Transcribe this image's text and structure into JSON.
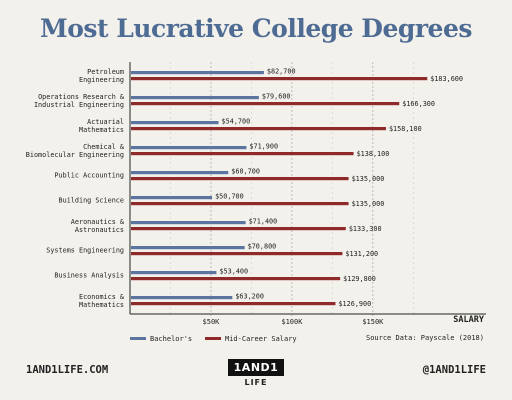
{
  "title": "Most Lucrative College Degrees",
  "chart_data": {
    "type": "bar",
    "orientation": "horizontal",
    "title": "Most Lucrative College Degrees",
    "categories": [
      [
        "Petroleum",
        "Engineering"
      ],
      [
        "Operations Research &",
        "Industrial Engineering"
      ],
      [
        "Actuarial",
        "Mathematics"
      ],
      [
        "Chemical &",
        "Biomolecular Engineering"
      ],
      [
        "Public Accounting"
      ],
      [
        "Building Science"
      ],
      [
        "Aeronautics &",
        "Astronautics"
      ],
      [
        "Systems Engineering"
      ],
      [
        "Business Analysis"
      ],
      [
        "Economics &",
        "Mathematics"
      ]
    ],
    "series": [
      {
        "name": "Bachelor's",
        "color": "#5b74a0",
        "values": [
          82700,
          79600,
          54700,
          71900,
          60700,
          50700,
          71400,
          70800,
          53400,
          63200
        ],
        "labels": [
          "$82,700",
          "$79,600",
          "$54,700",
          "$71,900",
          "$60,700",
          "$50,700",
          "$71,400",
          "$70,800",
          "$53,400",
          "$63,200"
        ]
      },
      {
        "name": "Mid-Career Salary",
        "color": "#8f2a2a",
        "values": [
          183600,
          166300,
          158100,
          138100,
          135000,
          135000,
          133300,
          131200,
          129800,
          126900
        ],
        "labels": [
          "$183,600",
          "$166,300",
          "$158,100",
          "$138,100",
          "$135,000",
          "$135,000",
          "$133,300",
          "$131,200",
          "$129,800",
          "$126,900"
        ]
      }
    ],
    "xlabel": "SALARY",
    "xlim": [
      0,
      210000
    ],
    "xticks": [
      50000,
      100000,
      150000
    ],
    "xtick_labels": [
      "$50K",
      "$100K",
      "$150K"
    ],
    "grid": "vertical dashed",
    "legend": "bottom-left"
  },
  "source": "Source Data: Payscale (2018)",
  "footer": {
    "website": "1AND1LIFE.COM",
    "handle": "@1AND1LIFE",
    "logo_top": "1AND1",
    "logo_bottom": "LIFE"
  }
}
